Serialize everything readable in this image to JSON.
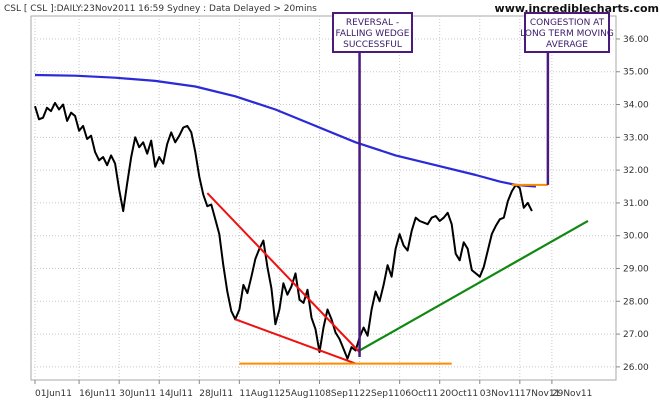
{
  "header": {
    "title": "CSL [ CSL ]:DAILY:23Nov2011 16:59 Sydney : Data Delayed > 20mins",
    "brand": "www.incrediblecharts.com"
  },
  "chart_data": {
    "type": "line",
    "title": "CSL [ CSL ]:DAILY:23Nov2011 16:59 Sydney : Data Delayed > 20mins",
    "x_tick_labels": [
      "01Jun11",
      "16Jun11",
      "30Jun11",
      "14Jul11",
      "28Jul11",
      "11Aug11",
      "25Aug11",
      "08Sep11",
      "22Sep11",
      "06Oct11",
      "20Oct11",
      "03Nov11",
      "17Nov11",
      "29Nov11"
    ],
    "x_tick_index": [
      0,
      11,
      21,
      31,
      41,
      51,
      61,
      71,
      81,
      91,
      101,
      111,
      121,
      129
    ],
    "y_ticks": [
      26.0,
      27.0,
      28.0,
      29.0,
      30.0,
      31.0,
      32.0,
      33.0,
      34.0,
      35.0,
      36.0
    ],
    "ylim": [
      25.6,
      36.7
    ],
    "xlim": [
      -1,
      145
    ],
    "grid": true,
    "colors": {
      "price": "#000000",
      "moving_average": "#2a2ad8",
      "wedge": "#ee1111",
      "trendline": "#118811",
      "support": "#ff8c00",
      "annotation_line": "#4b1a7e",
      "grid": "#c8c8c8"
    },
    "series": [
      {
        "kind": "price",
        "points": [
          [
            0,
            33.95
          ],
          [
            1,
            33.55
          ],
          [
            2,
            33.6
          ],
          [
            3,
            33.9
          ],
          [
            4,
            33.8
          ],
          [
            5,
            34.05
          ],
          [
            6,
            33.85
          ],
          [
            7,
            34.0
          ],
          [
            8,
            33.5
          ],
          [
            9,
            33.75
          ],
          [
            10,
            33.65
          ],
          [
            11,
            33.2
          ],
          [
            12,
            33.35
          ],
          [
            13,
            32.95
          ],
          [
            14,
            33.05
          ],
          [
            15,
            32.55
          ],
          [
            16,
            32.3
          ],
          [
            17,
            32.4
          ],
          [
            18,
            32.15
          ],
          [
            19,
            32.45
          ],
          [
            20,
            32.2
          ],
          [
            21,
            31.4
          ],
          [
            22,
            30.75
          ],
          [
            23,
            31.6
          ],
          [
            24,
            32.4
          ],
          [
            25,
            33.0
          ],
          [
            26,
            32.7
          ],
          [
            27,
            32.85
          ],
          [
            28,
            32.5
          ],
          [
            29,
            32.9
          ],
          [
            30,
            32.1
          ],
          [
            31,
            32.4
          ],
          [
            32,
            32.2
          ],
          [
            33,
            32.8
          ],
          [
            34,
            33.15
          ],
          [
            35,
            32.85
          ],
          [
            36,
            33.05
          ],
          [
            37,
            33.3
          ],
          [
            38,
            33.35
          ],
          [
            39,
            33.15
          ],
          [
            40,
            32.55
          ],
          [
            41,
            31.8
          ],
          [
            42,
            31.25
          ],
          [
            43,
            30.9
          ],
          [
            44,
            30.95
          ],
          [
            45,
            30.5
          ],
          [
            46,
            30.05
          ],
          [
            47,
            29.1
          ],
          [
            48,
            28.3
          ],
          [
            49,
            27.7
          ],
          [
            50,
            27.45
          ],
          [
            51,
            27.75
          ],
          [
            52,
            28.5
          ],
          [
            53,
            28.25
          ],
          [
            54,
            28.75
          ],
          [
            55,
            29.3
          ],
          [
            56,
            29.6
          ],
          [
            57,
            29.85
          ],
          [
            58,
            29.05
          ],
          [
            59,
            28.4
          ],
          [
            60,
            27.3
          ],
          [
            61,
            27.75
          ],
          [
            62,
            28.55
          ],
          [
            63,
            28.2
          ],
          [
            64,
            28.45
          ],
          [
            65,
            28.85
          ],
          [
            66,
            28.05
          ],
          [
            67,
            27.95
          ],
          [
            68,
            28.35
          ],
          [
            69,
            27.5
          ],
          [
            70,
            27.15
          ],
          [
            71,
            26.45
          ],
          [
            72,
            27.2
          ],
          [
            73,
            27.75
          ],
          [
            74,
            27.45
          ],
          [
            75,
            27.05
          ],
          [
            76,
            26.85
          ],
          [
            77,
            26.55
          ],
          [
            78,
            26.25
          ],
          [
            79,
            26.6
          ],
          [
            80,
            26.5
          ],
          [
            81,
            26.9
          ],
          [
            82,
            27.2
          ],
          [
            83,
            26.95
          ],
          [
            84,
            27.75
          ],
          [
            85,
            28.3
          ],
          [
            86,
            28.0
          ],
          [
            87,
            28.5
          ],
          [
            88,
            29.1
          ],
          [
            89,
            28.75
          ],
          [
            90,
            29.6
          ],
          [
            91,
            30.05
          ],
          [
            92,
            29.7
          ],
          [
            93,
            29.55
          ],
          [
            94,
            30.15
          ],
          [
            95,
            30.55
          ],
          [
            96,
            30.45
          ],
          [
            97,
            30.4
          ],
          [
            98,
            30.35
          ],
          [
            99,
            30.55
          ],
          [
            100,
            30.6
          ],
          [
            101,
            30.45
          ],
          [
            102,
            30.55
          ],
          [
            103,
            30.7
          ],
          [
            104,
            30.35
          ],
          [
            105,
            29.45
          ],
          [
            106,
            29.25
          ],
          [
            107,
            29.8
          ],
          [
            108,
            29.6
          ],
          [
            109,
            28.95
          ],
          [
            110,
            28.85
          ],
          [
            111,
            28.75
          ],
          [
            112,
            29.05
          ],
          [
            113,
            29.55
          ],
          [
            114,
            30.05
          ],
          [
            115,
            30.3
          ],
          [
            116,
            30.5
          ],
          [
            117,
            30.55
          ],
          [
            118,
            31.05
          ],
          [
            119,
            31.35
          ],
          [
            120,
            31.55
          ],
          [
            121,
            31.45
          ],
          [
            122,
            30.85
          ],
          [
            123,
            31.0
          ],
          [
            124,
            30.75
          ]
        ]
      },
      {
        "kind": "moving_average",
        "points": [
          [
            0,
            34.9
          ],
          [
            10,
            34.88
          ],
          [
            20,
            34.82
          ],
          [
            30,
            34.72
          ],
          [
            40,
            34.55
          ],
          [
            50,
            34.25
          ],
          [
            60,
            33.85
          ],
          [
            70,
            33.35
          ],
          [
            80,
            32.85
          ],
          [
            90,
            32.45
          ],
          [
            100,
            32.15
          ],
          [
            110,
            31.85
          ],
          [
            116,
            31.65
          ],
          [
            120,
            31.55
          ],
          [
            125,
            31.5
          ]
        ]
      }
    ],
    "annotations": [
      {
        "kind": "wedge_upper",
        "points": [
          [
            43,
            31.3
          ],
          [
            81,
            26.45
          ]
        ]
      },
      {
        "kind": "wedge_lower",
        "points": [
          [
            50,
            27.45
          ],
          [
            80,
            26.1
          ]
        ]
      },
      {
        "kind": "trendline",
        "points": [
          [
            81,
            26.5
          ],
          [
            138,
            30.45
          ]
        ]
      },
      {
        "kind": "support",
        "points": [
          [
            51,
            26.1
          ],
          [
            104,
            26.1
          ]
        ]
      },
      {
        "kind": "resistance",
        "points": [
          [
            119,
            31.55
          ],
          [
            128,
            31.55
          ]
        ]
      },
      {
        "kind": "callout_line",
        "points": [
          [
            81,
            36.6
          ],
          [
            81,
            26.3
          ]
        ]
      },
      {
        "kind": "callout_line",
        "points": [
          [
            128,
            35.85
          ],
          [
            128,
            31.55
          ]
        ]
      }
    ],
    "callouts": [
      {
        "lines": [
          "REVERSAL -",
          "FALLING WEDGE",
          "SUCCESSFUL"
        ]
      },
      {
        "lines": [
          "CONGESTION AT",
          "LONG TERM MOVING",
          "AVERAGE"
        ]
      }
    ]
  }
}
